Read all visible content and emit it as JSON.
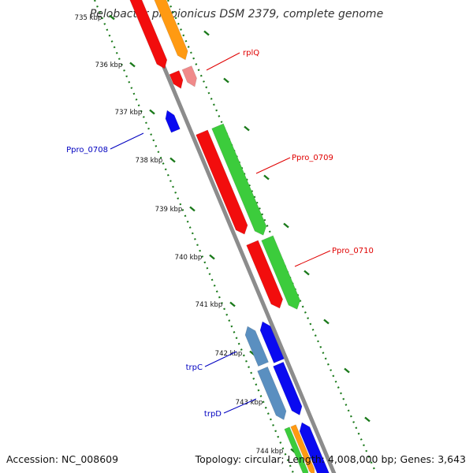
{
  "title": "Pelobacter propionicus DSM 2379, complete genome",
  "footer": {
    "accession": "Accession: NC_008609",
    "topology": "Topology: circular; Length: 4,008,000 bp; Genes: 3,643"
  },
  "colors": {
    "backbone": "#8c8c8c",
    "tick": "#1b7a1b",
    "red": "#f20d0d",
    "orange": "#ff9a12",
    "pink": "#f08a8a",
    "green": "#3ccc3c",
    "blue": "#0a0af0",
    "steelblue": "#4682b4",
    "red_label": "#e00000",
    "blue_label": "#0000c0"
  },
  "ticks": [
    {
      "label": "735 kbp"
    },
    {
      "label": "736 kbp"
    },
    {
      "label": "737 kbp"
    },
    {
      "label": "738 kbp"
    },
    {
      "label": "739 kbp"
    },
    {
      "label": "740 kbp"
    },
    {
      "label": "741 kbp"
    },
    {
      "label": "742 kbp"
    },
    {
      "label": "743 kbp"
    },
    {
      "label": "744 kbp"
    }
  ],
  "gene_labels": [
    {
      "name": "rplQ",
      "color": "red"
    },
    {
      "name": "Ppro_0708",
      "color": "blue"
    },
    {
      "name": "Ppro_0709",
      "color": "red"
    },
    {
      "name": "Ppro_0710",
      "color": "red"
    },
    {
      "name": "trpC",
      "color": "blue"
    },
    {
      "name": "trpD",
      "color": "blue"
    }
  ],
  "icons": {
    "arrow_shape": "gene-arrow-icon"
  }
}
